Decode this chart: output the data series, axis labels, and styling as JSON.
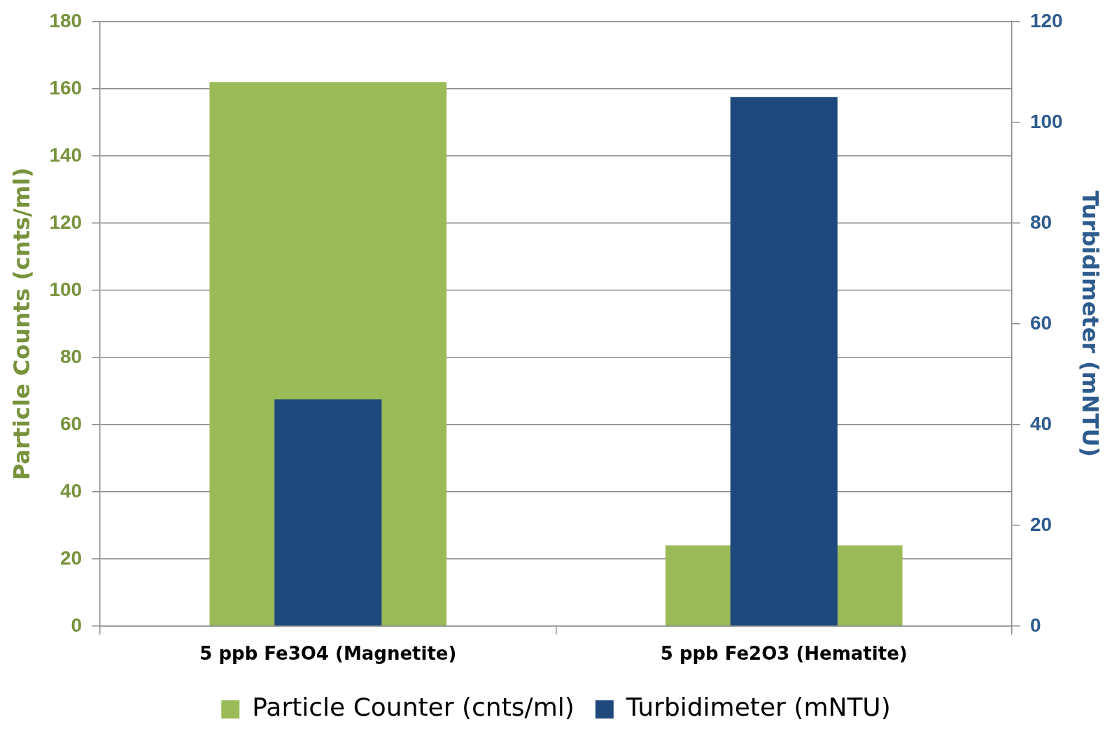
{
  "chart_data": {
    "type": "bar",
    "categories": [
      "5 ppb Fe3O4 (Magnetite)",
      "5 ppb Fe2O3 (Hematite)"
    ],
    "series": [
      {
        "name": "Particle Counter (cnts/ml)",
        "color": "#9bbb59",
        "values": [
          162,
          24
        ]
      },
      {
        "name": "Turbidimeter (mNTU)",
        "color": "#1f497d",
        "values": [
          45,
          105
        ],
        "axis": "y2"
      }
    ],
    "ylabel": "Particle Counts (cnts/ml)",
    "y2label": "Turbidimeter (mNTU)",
    "ylim": [
      0,
      180
    ],
    "yticks": [
      0,
      20,
      40,
      60,
      80,
      100,
      120,
      140,
      160,
      180
    ],
    "y2lim": [
      0,
      120
    ],
    "y2ticks": [
      0,
      20,
      40,
      60,
      80,
      100,
      120
    ],
    "grid": "y",
    "legend": "bottom"
  }
}
